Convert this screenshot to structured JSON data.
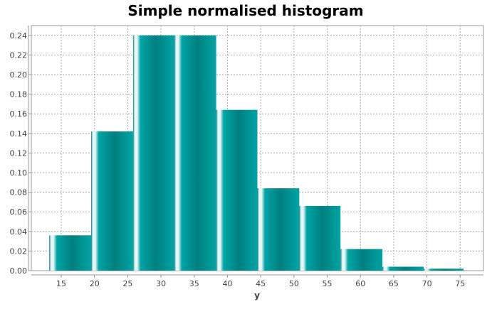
{
  "chart_data": {
    "type": "bar",
    "title": "Simple normalised histogram",
    "xlabel": "y",
    "ylabel": "",
    "xlim": [
      10.5,
      78.5
    ],
    "ylim": [
      0,
      0.25
    ],
    "xticks": [
      15,
      20,
      25,
      30,
      35,
      40,
      45,
      50,
      55,
      60,
      65,
      70,
      75
    ],
    "yticks": [
      0.0,
      0.02,
      0.04,
      0.06,
      0.08,
      0.1,
      0.12,
      0.14,
      0.16,
      0.18,
      0.2,
      0.22,
      0.24
    ],
    "ytick_labels": [
      "0.00",
      "0.02",
      "0.04",
      "0.06",
      "0.08",
      "0.10",
      "0.12",
      "0.14",
      "0.16",
      "0.18",
      "0.20",
      "0.22",
      "0.24"
    ],
    "grid": true,
    "bins": [
      {
        "start": 13.2,
        "end": 19.5,
        "value": 0.036
      },
      {
        "start": 19.5,
        "end": 25.8,
        "value": 0.142
      },
      {
        "start": 25.8,
        "end": 32.0,
        "value": 0.24
      },
      {
        "start": 32.0,
        "end": 38.3,
        "value": 0.24
      },
      {
        "start": 38.3,
        "end": 44.5,
        "value": 0.164
      },
      {
        "start": 44.5,
        "end": 50.8,
        "value": 0.084
      },
      {
        "start": 50.8,
        "end": 57.0,
        "value": 0.066
      },
      {
        "start": 57.0,
        "end": 63.3,
        "value": 0.022
      },
      {
        "start": 63.3,
        "end": 69.5,
        "value": 0.004
      },
      {
        "start": 69.5,
        "end": 75.5,
        "value": 0.002
      }
    ],
    "bar_color": "#00A5A5",
    "bar_dark_color": "#007F7F",
    "bar_highlight_color": "#E8F6F6"
  }
}
